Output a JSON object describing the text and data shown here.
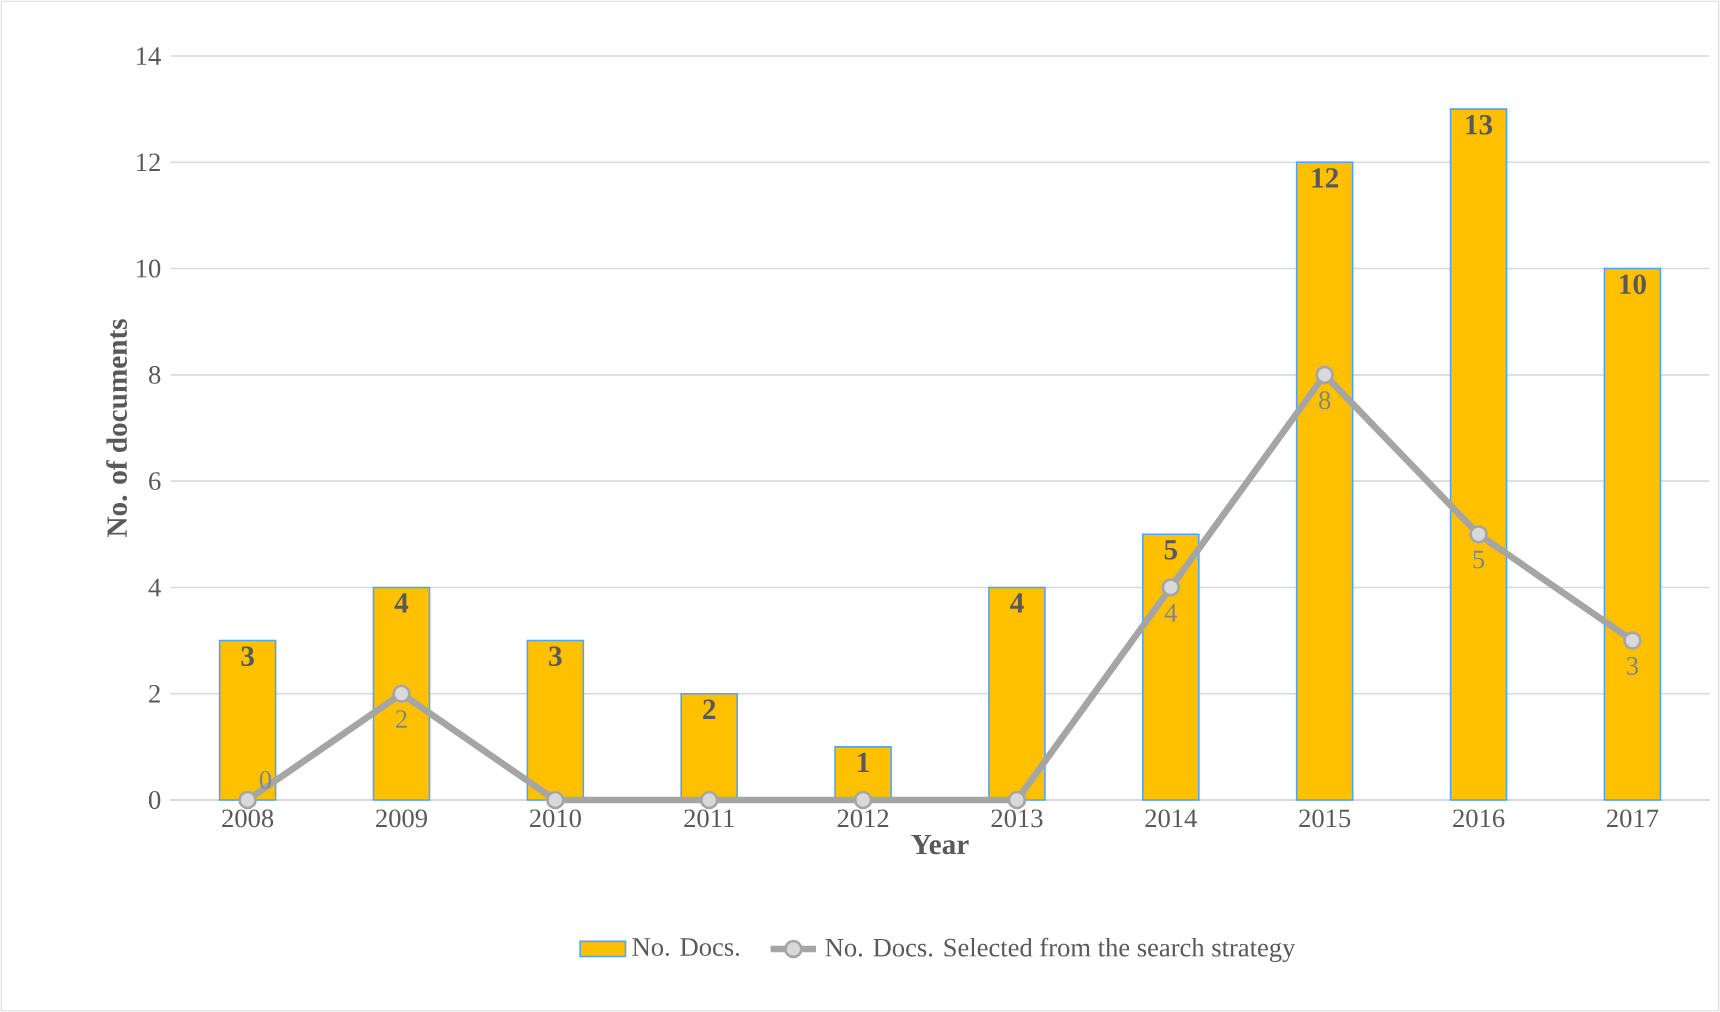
{
  "chart_data": {
    "type": "bar",
    "categories": [
      "2008",
      "2009",
      "2010",
      "2011",
      "2012",
      "2013",
      "2014",
      "2015",
      "2016",
      "2017"
    ],
    "series": [
      {
        "name": "No. Docs.",
        "color": "#ffc000",
        "values": [
          3,
          4,
          3,
          2,
          1,
          4,
          5,
          12,
          13,
          10
        ],
        "value_labels": [
          "3",
          "4",
          "3",
          "2",
          "1",
          "4",
          "5",
          "12",
          "13",
          "10"
        ]
      },
      {
        "name": "No. Docs. Selected from the search strategy",
        "type": "line",
        "color": "#a5a5a5",
        "marker": "circle",
        "values": [
          0,
          2,
          0,
          0,
          0,
          0,
          4,
          8,
          5,
          3
        ],
        "value_labels": [
          "0",
          "2",
          null,
          null,
          null,
          null,
          "4",
          "8",
          "5",
          "3"
        ]
      }
    ],
    "xlabel": "Year",
    "ylabel": "No. of documents",
    "ylim": [
      0,
      14
    ],
    "yticks": [
      0,
      2,
      4,
      6,
      8,
      10,
      12,
      14
    ],
    "grid": "y",
    "legend": "bottom"
  }
}
